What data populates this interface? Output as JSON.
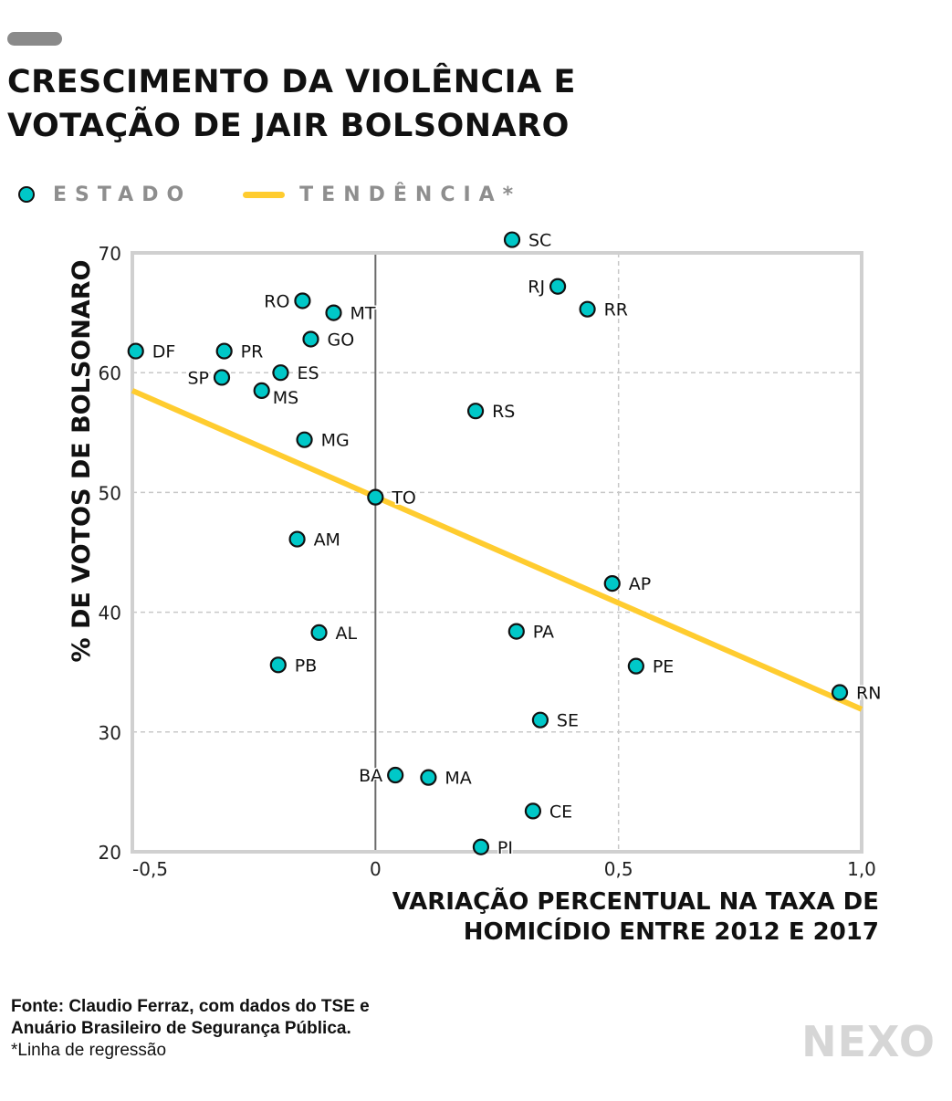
{
  "header": {
    "title_lines": [
      "CRESCIMENTO DA VIOLÊNCIA E",
      "VOTAÇÃO DE JAIR BOLSONARO"
    ]
  },
  "legend": {
    "state_label": "ESTADO",
    "trend_label": "TENDÊNCIA*"
  },
  "colors": {
    "point_fill": "#00c8c8",
    "point_stroke": "#111111",
    "trend": "#ffcc2f",
    "grid": "#c8c8c8",
    "frame": "#d0d0d0",
    "zero_line": "#6a6a6a"
  },
  "footer": {
    "source_line1": "Fonte: Claudio Ferraz, com dados do TSE e",
    "source_line2": "Anuário Brasileiro de Segurança Pública.",
    "note": "*Linha de regressão",
    "logo": "NEXO"
  },
  "chart_data": {
    "type": "scatter",
    "title": "CRESCIMENTO DA VIOLÊNCIA E VOTAÇÃO DE JAIR BOLSONARO",
    "xlabel": "VARIAÇÃO PERCENTUAL NA TAXA DE HOMICÍDIO ENTRE 2012 E 2017",
    "xlabel_lines": [
      "VARIAÇÃO PERCENTUAL NA TAXA DE",
      "HOMICÍDIO ENTRE 2012 E 2017"
    ],
    "ylabel": "% DE VOTOS DE BOLSONARO",
    "xlim": [
      -0.5,
      1.0
    ],
    "ylim": [
      20,
      70
    ],
    "xticks": [
      {
        "value": -0.5,
        "label": "-0,5"
      },
      {
        "value": 0,
        "label": "0"
      },
      {
        "value": 0.5,
        "label": "0,5"
      },
      {
        "value": 1.0,
        "label": "1,0"
      }
    ],
    "yticks": [
      {
        "value": 20,
        "label": "20"
      },
      {
        "value": 30,
        "label": "30"
      },
      {
        "value": 40,
        "label": "40"
      },
      {
        "value": 50,
        "label": "50"
      },
      {
        "value": 60,
        "label": "60"
      },
      {
        "value": 70,
        "label": "70"
      }
    ],
    "grid": true,
    "legend": {
      "position": "top-left",
      "entries": [
        "ESTADO",
        "TENDÊNCIA*"
      ]
    },
    "series": [
      {
        "name": "ESTADO",
        "points": [
          {
            "label": "SC",
            "x": 0.281,
            "y": 71.1,
            "label_side": "right"
          },
          {
            "label": "RJ",
            "x": 0.375,
            "y": 67.2,
            "label_side": "left"
          },
          {
            "label": "RO",
            "x": -0.15,
            "y": 66.0,
            "label_side": "left"
          },
          {
            "label": "RR",
            "x": 0.436,
            "y": 65.3,
            "label_side": "right"
          },
          {
            "label": "MT",
            "x": -0.086,
            "y": 65.0,
            "label_side": "right"
          },
          {
            "label": "GO",
            "x": -0.133,
            "y": 62.8,
            "label_side": "right"
          },
          {
            "label": "DF",
            "x": -0.493,
            "y": 61.8,
            "label_side": "right"
          },
          {
            "label": "PR",
            "x": -0.311,
            "y": 61.8,
            "label_side": "right"
          },
          {
            "label": "ES",
            "x": -0.195,
            "y": 60.0,
            "label_side": "right"
          },
          {
            "label": "SP",
            "x": -0.316,
            "y": 59.6,
            "label_side": "left"
          },
          {
            "label": "MS",
            "x": -0.234,
            "y": 58.5,
            "label_side": "right-below"
          },
          {
            "label": "RS",
            "x": 0.206,
            "y": 56.8,
            "label_side": "right"
          },
          {
            "label": "MG",
            "x": -0.146,
            "y": 54.4,
            "label_side": "right"
          },
          {
            "label": "TO",
            "x": 0.0,
            "y": 49.6,
            "label_side": "right"
          },
          {
            "label": "AM",
            "x": -0.161,
            "y": 46.1,
            "label_side": "right"
          },
          {
            "label": "AP",
            "x": 0.487,
            "y": 42.4,
            "label_side": "right"
          },
          {
            "label": "PA",
            "x": 0.29,
            "y": 38.4,
            "label_side": "right"
          },
          {
            "label": "AL",
            "x": -0.116,
            "y": 38.3,
            "label_side": "right"
          },
          {
            "label": "PB",
            "x": -0.2,
            "y": 35.6,
            "label_side": "right"
          },
          {
            "label": "PE",
            "x": 0.536,
            "y": 35.5,
            "label_side": "right"
          },
          {
            "label": "RN",
            "x": 0.955,
            "y": 33.3,
            "label_side": "right"
          },
          {
            "label": "SE",
            "x": 0.339,
            "y": 31.0,
            "label_side": "right"
          },
          {
            "label": "BA",
            "x": 0.041,
            "y": 26.4,
            "label_side": "left"
          },
          {
            "label": "MA",
            "x": 0.109,
            "y": 26.2,
            "label_side": "right"
          },
          {
            "label": "CE",
            "x": 0.324,
            "y": 23.4,
            "label_side": "right"
          },
          {
            "label": "PI",
            "x": 0.217,
            "y": 20.4,
            "label_side": "right"
          }
        ]
      }
    ],
    "trendline": {
      "name": "TENDÊNCIA*",
      "x": [
        -0.5,
        1.0
      ],
      "y": [
        58.5,
        31.9
      ]
    }
  }
}
